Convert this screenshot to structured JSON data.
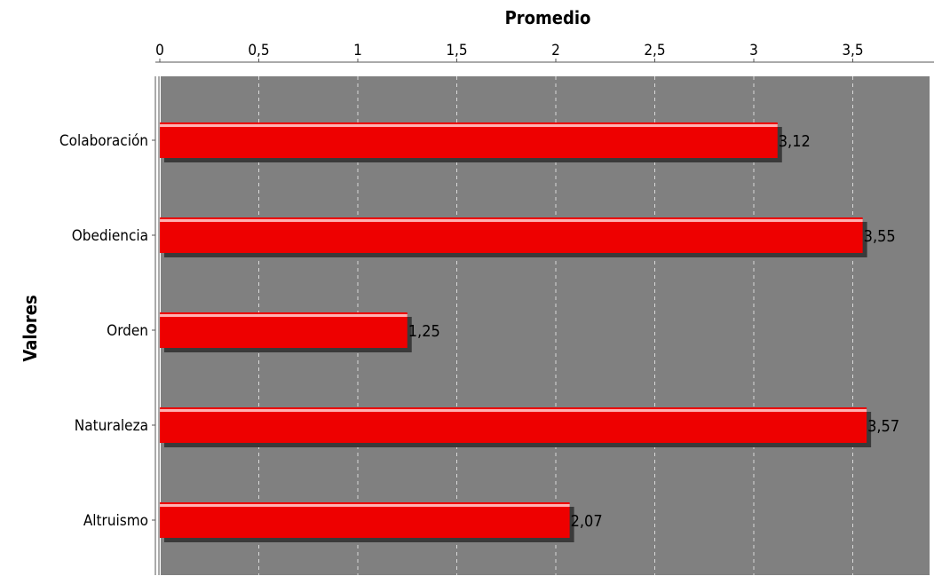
{
  "chart_data": {
    "type": "bar",
    "orientation": "horizontal",
    "xlabel": "Promedio",
    "ylabel": "Valores",
    "categories": [
      "Colaboración",
      "Obediencia",
      "Orden",
      "Naturaleza",
      "Altruismo"
    ],
    "values": [
      3.12,
      3.55,
      1.25,
      3.57,
      2.07
    ],
    "value_labels": [
      "3,12",
      "3,55",
      "1,25",
      "3,57",
      "2,07"
    ],
    "x_ticks": [
      0,
      0.5,
      1,
      1.5,
      2,
      2.5,
      3,
      3.5
    ],
    "x_tick_labels": [
      "0",
      "0,5",
      "1",
      "1,5",
      "2",
      "2,5",
      "3",
      "3,5"
    ],
    "xlim": [
      0,
      3.9
    ],
    "x_axis_position": "top",
    "grid": true,
    "colors": {
      "bar": "#ee0000",
      "bar_highlight": "#ffb3b3",
      "bar_shadow": "#3a3a3a",
      "plot_background": "#808080",
      "grid": "#d9d9d9",
      "page_background": "#ffffff"
    }
  }
}
